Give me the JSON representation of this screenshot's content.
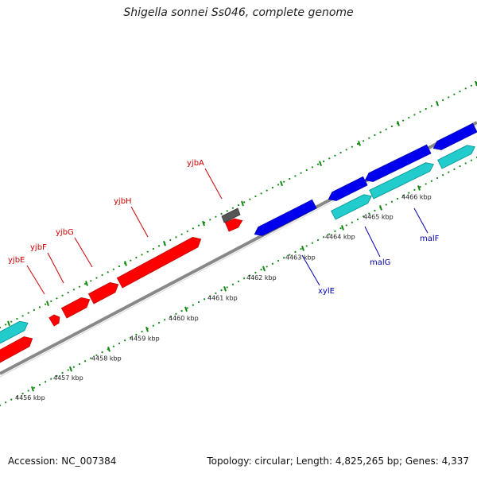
{
  "title": "Shigella sonnei Ss046, complete genome",
  "footer": {
    "accession": "Accession: NC_007384",
    "summary": "Topology: circular; Length: 4,825,265 bp; Genes: 4,337"
  },
  "colors": {
    "forward_gene": "#ff0000",
    "reverse_gene": "#0000ee",
    "cyan_feature": "#22cccc",
    "gray_feature": "#555555",
    "backbone": "#888888",
    "ticks": "#118811",
    "forward_label": "#cc0000",
    "reverse_label": "#0000aa"
  },
  "ruler": {
    "unit": "kbp",
    "labels": [
      "4456 kbp",
      "4457 kbp",
      "4458 kbp",
      "4459 kbp",
      "4460 kbp",
      "4461 kbp",
      "4462 kbp",
      "4463 kbp",
      "4464 kbp",
      "4465 kbp",
      "4466 kbp"
    ]
  },
  "genes": {
    "forward": [
      "yjbE",
      "yjbF",
      "yjbG",
      "yjbH",
      "yjbA"
    ],
    "reverse": [
      "xylE",
      "malG",
      "malF"
    ]
  }
}
